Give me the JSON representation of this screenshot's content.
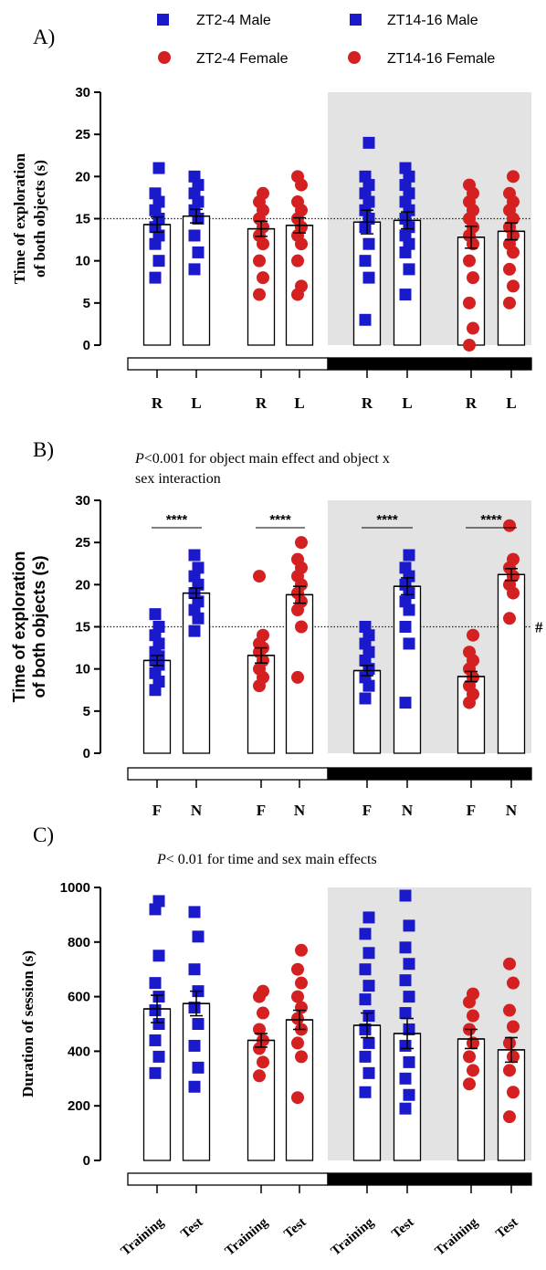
{
  "legend": [
    {
      "label": "ZT2-4 Male",
      "marker": "square",
      "color": "#1a1acc"
    },
    {
      "label": "ZT14-16 Male",
      "marker": "square",
      "color": "#1a1acc"
    },
    {
      "label": "ZT2-4 Female",
      "marker": "circle",
      "color": "#d42020"
    },
    {
      "label": "ZT14-16 Female",
      "marker": "circle",
      "color": "#d42020"
    }
  ],
  "chart_data": [
    {
      "type": "bar",
      "panel_label": "A)",
      "note": "",
      "ylabel": [
        "Time of exploration",
        "of both objects (s)"
      ],
      "ylim": [
        0,
        30
      ],
      "yticks": [
        0,
        5,
        10,
        15,
        20,
        25,
        30
      ],
      "reference_line": 15,
      "categories": [
        "R",
        "L",
        "R",
        "L",
        "R",
        "L",
        "R",
        "L"
      ],
      "groups": [
        "ZT2-4 Male",
        "ZT2-4 Female",
        "ZT14-16 Male",
        "ZT14-16 Female"
      ],
      "values": [
        14.3,
        15.3,
        13.8,
        14.2,
        14.6,
        14.8,
        12.8,
        13.5
      ],
      "sem": [
        0.9,
        0.8,
        0.9,
        0.9,
        1.4,
        1.0,
        1.3,
        1.0
      ],
      "points": [
        [
          8,
          10,
          12,
          13,
          14,
          15,
          16,
          17,
          18,
          21
        ],
        [
          9,
          11,
          13,
          15,
          16,
          17,
          18,
          19,
          20
        ],
        [
          6,
          8,
          10,
          12,
          13,
          14,
          15,
          16,
          17,
          18
        ],
        [
          6,
          7,
          10,
          12,
          13,
          14,
          15,
          16,
          17,
          19,
          20
        ],
        [
          3,
          8,
          10,
          12,
          14,
          15,
          16,
          17,
          18,
          19,
          20,
          24
        ],
        [
          6,
          9,
          11,
          12,
          13,
          14,
          15,
          16,
          17,
          18,
          19,
          20,
          21
        ],
        [
          0,
          2,
          5,
          8,
          10,
          12,
          13,
          14,
          15,
          16,
          17,
          18,
          19
        ],
        [
          5,
          7,
          9,
          11,
          12,
          13,
          14,
          15,
          16,
          17,
          18,
          20
        ]
      ],
      "annotations": []
    },
    {
      "type": "bar",
      "panel_label": "B)",
      "note": [
        "<0.001 for object main effect and object x",
        "sex interaction"
      ],
      "note_p": "P",
      "ylabel": [
        "Time of exploration",
        "of both objects (s)"
      ],
      "ylim": [
        0,
        30
      ],
      "yticks": [
        0,
        5,
        10,
        15,
        20,
        25,
        30
      ],
      "reference_line": 15,
      "reference_mark": "#",
      "categories": [
        "F",
        "N",
        "F",
        "N",
        "F",
        "N",
        "F",
        "N"
      ],
      "groups": [
        "ZT2-4 Male",
        "ZT2-4 Female",
        "ZT14-16 Male",
        "ZT14-16 Female"
      ],
      "values": [
        11.0,
        19.0,
        11.6,
        18.8,
        9.8,
        19.8,
        9.1,
        21.2
      ],
      "sem": [
        0.6,
        0.6,
        0.9,
        1.0,
        0.6,
        1.0,
        0.6,
        0.7
      ],
      "points": [
        [
          7.5,
          8.5,
          9.5,
          10.5,
          11,
          11.5,
          12,
          13,
          14,
          15,
          16.5
        ],
        [
          14.5,
          16,
          17,
          18,
          19,
          20,
          21,
          22,
          23.5
        ],
        [
          8,
          9,
          10,
          11,
          12,
          12.5,
          13,
          14,
          21
        ],
        [
          9,
          15,
          17,
          18,
          19,
          20,
          21,
          22,
          23,
          25
        ],
        [
          6.5,
          8,
          9,
          10,
          11,
          12,
          13,
          14,
          15
        ],
        [
          6,
          13,
          15,
          17,
          18,
          19,
          20,
          21,
          22,
          23.5
        ],
        [
          6,
          7,
          8,
          9,
          10,
          11,
          12,
          14
        ],
        [
          16,
          19,
          20,
          21,
          22,
          23,
          27
        ]
      ],
      "annotations": [
        "****",
        "****",
        "****",
        "****"
      ]
    },
    {
      "type": "bar",
      "panel_label": "C)",
      "note": [
        "< 0.01 for time and sex main effects"
      ],
      "note_p": "P",
      "ylabel": [
        "Duration of session (s)"
      ],
      "ylim": [
        0,
        1000
      ],
      "yticks": [
        0,
        200,
        400,
        600,
        800,
        1000
      ],
      "categories": [
        "Training",
        "Test",
        "Training",
        "Test",
        "Training",
        "Test",
        "Training",
        "Test"
      ],
      "groups": [
        "ZT2-4 Male",
        "ZT2-4 Female",
        "ZT14-16 Male",
        "ZT14-16 Female"
      ],
      "values": [
        555,
        575,
        440,
        515,
        495,
        465,
        445,
        405
      ],
      "sem": [
        50,
        45,
        25,
        35,
        45,
        55,
        35,
        45
      ],
      "points": [
        [
          320,
          380,
          440,
          500,
          550,
          600,
          650,
          750,
          920,
          950
        ],
        [
          270,
          340,
          420,
          500,
          560,
          620,
          700,
          820,
          910
        ],
        [
          310,
          360,
          410,
          440,
          480,
          540,
          600,
          620
        ],
        [
          230,
          380,
          430,
          480,
          520,
          560,
          600,
          650,
          700,
          770
        ],
        [
          250,
          320,
          380,
          430,
          480,
          530,
          590,
          640,
          700,
          760,
          830,
          890
        ],
        [
          190,
          240,
          300,
          360,
          420,
          480,
          540,
          600,
          660,
          720,
          780,
          860,
          970
        ],
        [
          280,
          330,
          380,
          430,
          480,
          530,
          580,
          610
        ],
        [
          160,
          250,
          330,
          380,
          430,
          490,
          550,
          650,
          720
        ]
      ],
      "annotations": []
    }
  ]
}
